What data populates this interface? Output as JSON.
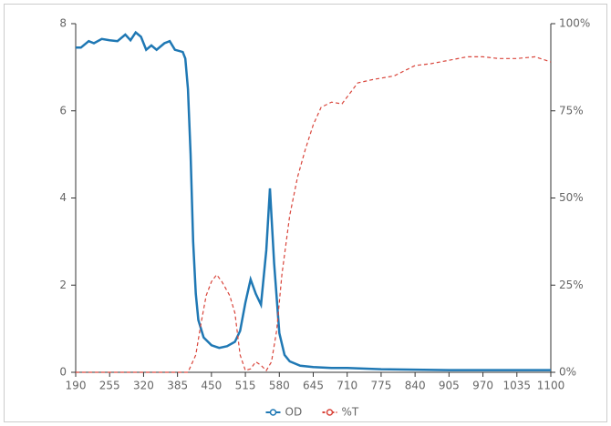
{
  "chart_data": {
    "type": "line",
    "xlim": [
      190,
      1100
    ],
    "xticks": [
      190,
      255,
      320,
      385,
      450,
      515,
      580,
      645,
      710,
      775,
      840,
      905,
      970,
      1035,
      1100
    ],
    "ylim": [
      0,
      8
    ],
    "yticks": [
      0,
      2,
      4,
      6,
      8
    ],
    "y2lim": [
      0,
      100
    ],
    "y2ticks": [
      {
        "value": 0,
        "label": "0%"
      },
      {
        "value": 25,
        "label": "25%"
      },
      {
        "value": 50,
        "label": "50%"
      },
      {
        "value": 75,
        "label": "75%"
      },
      {
        "value": 100,
        "label": "100%"
      }
    ],
    "legend": "bottom",
    "series": [
      {
        "name": "OD",
        "color": "#1f78b4",
        "dash": false,
        "x": [
          190,
          200,
          215,
          225,
          240,
          255,
          270,
          285,
          295,
          305,
          315,
          325,
          335,
          345,
          360,
          370,
          380,
          395,
          400,
          405,
          410,
          415,
          420,
          425,
          435,
          450,
          465,
          480,
          495,
          505,
          515,
          525,
          535,
          545,
          555,
          562,
          570,
          580,
          590,
          600,
          620,
          645,
          680,
          710,
          775,
          840,
          905,
          1035,
          1100
        ],
        "values": [
          7.45,
          7.45,
          7.6,
          7.55,
          7.65,
          7.62,
          7.6,
          7.75,
          7.62,
          7.8,
          7.7,
          7.4,
          7.5,
          7.4,
          7.55,
          7.6,
          7.4,
          7.35,
          7.2,
          6.5,
          5,
          3,
          1.8,
          1.2,
          0.8,
          0.62,
          0.56,
          0.6,
          0.7,
          0.95,
          1.6,
          2.13,
          1.8,
          1.55,
          2.8,
          4.22,
          2.5,
          0.9,
          0.4,
          0.25,
          0.15,
          0.12,
          0.1,
          0.1,
          0.07,
          0.06,
          0.05,
          0.05,
          0.05
        ]
      },
      {
        "name": "%T",
        "color": "#d9453b",
        "dash": true,
        "axis": "y2",
        "x": [
          190,
          300,
          405,
          420,
          430,
          440,
          450,
          460,
          470,
          485,
          495,
          505,
          515,
          525,
          535,
          545,
          555,
          565,
          575,
          585,
          600,
          615,
          630,
          645,
          660,
          680,
          700,
          715,
          730,
          760,
          800,
          840,
          870,
          905,
          940,
          970,
          1000,
          1035,
          1070,
          1100
        ],
        "values": [
          0,
          0,
          0,
          5,
          14,
          22,
          26,
          28,
          26,
          22,
          17,
          5,
          0.5,
          1,
          3,
          2,
          0.5,
          3,
          12,
          28,
          45,
          56,
          64,
          71,
          76,
          77.5,
          77,
          80,
          83,
          84,
          85,
          88,
          88.5,
          89.5,
          90.5,
          90.5,
          90,
          90,
          90.5,
          89
        ]
      }
    ]
  }
}
